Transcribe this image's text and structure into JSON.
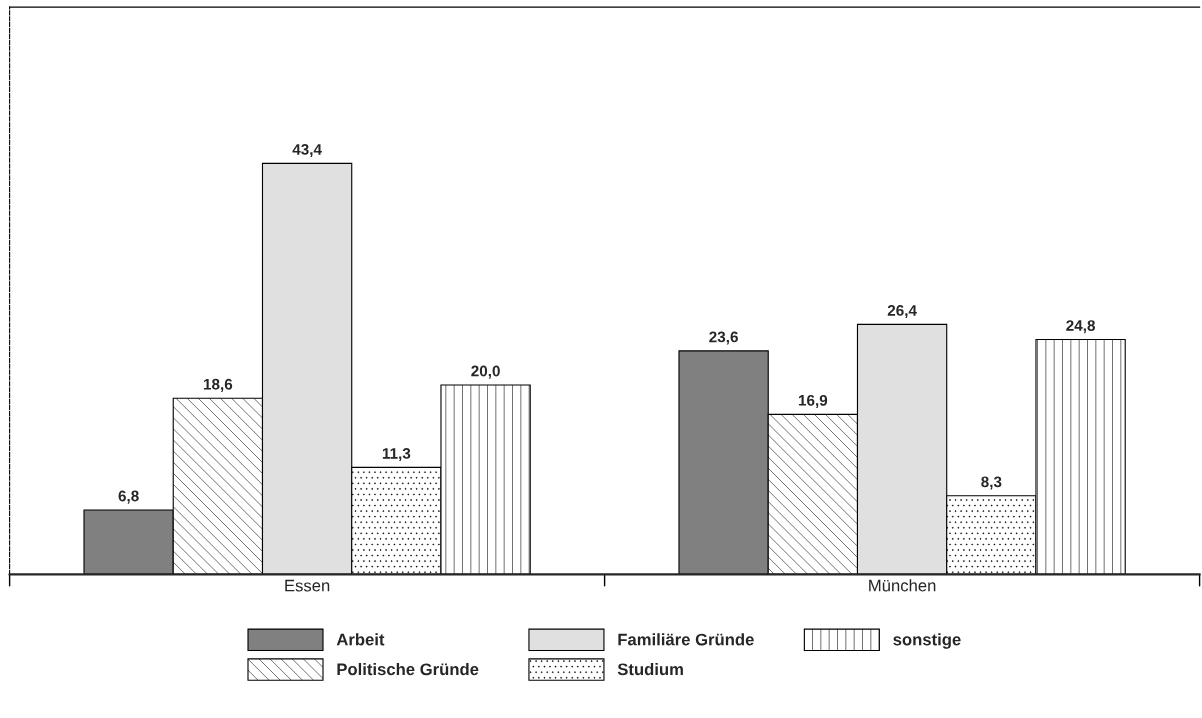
{
  "chart_data": {
    "type": "bar",
    "categories": [
      "Essen",
      "München"
    ],
    "series": [
      {
        "name": "Arbeit",
        "color": "#808080",
        "values": [
          6.8,
          23.6
        ],
        "value_labels": [
          "6,8",
          "23,6"
        ]
      },
      {
        "name": "Politische Gründe",
        "color": "#000000",
        "values": [
          18.6,
          16.9
        ],
        "value_labels": [
          "18,6",
          "16,9"
        ]
      },
      {
        "name": "Familiäre Gründe",
        "color": "#e0e0e0",
        "values": [
          43.4,
          26.4
        ],
        "value_labels": [
          "43,4",
          "26,4"
        ]
      },
      {
        "name": "Studium",
        "color": "#000000",
        "values": [
          11.3,
          8.3
        ],
        "value_labels": [
          "11,3",
          "8,3"
        ]
      },
      {
        "name": "sonstige",
        "color": "#000000",
        "values": [
          20.0,
          24.8
        ],
        "value_labels": [
          "20,0",
          "24,8"
        ]
      }
    ],
    "legend": "bottom",
    "tick_labels": "x"
  }
}
